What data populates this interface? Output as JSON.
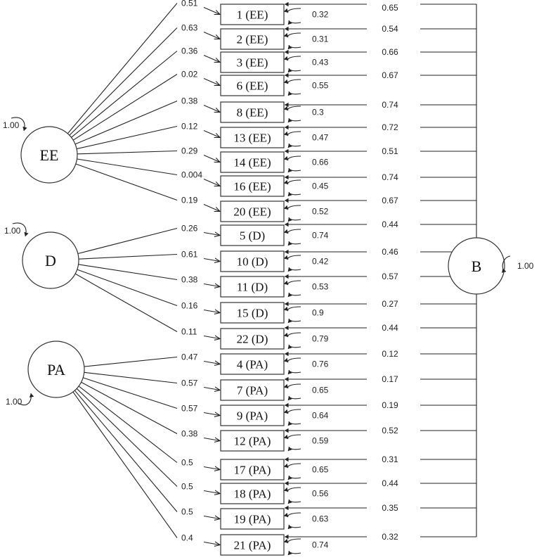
{
  "latents": [
    {
      "id": "EE",
      "label": "EE",
      "variance": "1.00"
    },
    {
      "id": "D",
      "label": "D",
      "variance": "1.00"
    },
    {
      "id": "PA",
      "label": "PA",
      "variance": "1.00"
    },
    {
      "id": "B",
      "label": "B",
      "variance": "1.00"
    }
  ],
  "items": [
    {
      "label": "1 (EE)",
      "factor": "EE",
      "loading": "0.51",
      "error": "0.32",
      "b_loading": "0.65"
    },
    {
      "label": "2 (EE)",
      "factor": "EE",
      "loading": "0.63",
      "error": "0.31",
      "b_loading": "0.54"
    },
    {
      "label": "3 (EE)",
      "factor": "EE",
      "loading": "0.36",
      "error": "0.43",
      "b_loading": "0.66"
    },
    {
      "label": "6 (EE)",
      "factor": "EE",
      "loading": "0.02",
      "error": "0.55",
      "b_loading": "0.67"
    },
    {
      "label": "8 (EE)",
      "factor": "EE",
      "loading": "0.38",
      "error": "0.3",
      "b_loading": "0.74"
    },
    {
      "label": "13 (EE)",
      "factor": "EE",
      "loading": "0.12",
      "error": "0.47",
      "b_loading": "0.72"
    },
    {
      "label": "14 (EE)",
      "factor": "EE",
      "loading": "0.29",
      "error": "0.66",
      "b_loading": "0.51"
    },
    {
      "label": "16 (EE)",
      "factor": "EE",
      "loading": "0.004",
      "error": "0.45",
      "b_loading": "0.74"
    },
    {
      "label": "20 (EE)",
      "factor": "EE",
      "loading": "0.19",
      "error": "0.52",
      "b_loading": "0.67"
    },
    {
      "label": "5 (D)",
      "factor": "D",
      "loading": "0.26",
      "error": "0.74",
      "b_loading": "0.44"
    },
    {
      "label": "10 (D)",
      "factor": "D",
      "loading": "0.61",
      "error": "0.42",
      "b_loading": "0.46"
    },
    {
      "label": "11 (D)",
      "factor": "D",
      "loading": "0.38",
      "error": "0.53",
      "b_loading": "0.57"
    },
    {
      "label": "15 (D)",
      "factor": "D",
      "loading": "0.16",
      "error": "0.9",
      "b_loading": "0.27"
    },
    {
      "label": "22 (D)",
      "factor": "D",
      "loading": "0.11",
      "error": "0.79",
      "b_loading": "0.44"
    },
    {
      "label": "4 (PA)",
      "factor": "PA",
      "loading": "0.47",
      "error": "0.76",
      "b_loading": "0.12"
    },
    {
      "label": "7 (PA)",
      "factor": "PA",
      "loading": "0.57",
      "error": "0.65",
      "b_loading": "0.17"
    },
    {
      "label": "9 (PA)",
      "factor": "PA",
      "loading": "0.57",
      "error": "0.64",
      "b_loading": "0.19"
    },
    {
      "label": "12 (PA)",
      "factor": "PA",
      "loading": "0.38",
      "error": "0.59",
      "b_loading": "0.52"
    },
    {
      "label": "17 (PA)",
      "factor": "PA",
      "loading": "0.5",
      "error": "0.65",
      "b_loading": "0.31"
    },
    {
      "label": "18 (PA)",
      "factor": "PA",
      "loading": "0.5",
      "error": "0.56",
      "b_loading": "0.44"
    },
    {
      "label": "19 (PA)",
      "factor": "PA",
      "loading": "0.5",
      "error": "0.63",
      "b_loading": "0.35"
    },
    {
      "label": "21 (PA)",
      "factor": "PA",
      "loading": "0.4",
      "error": "0.74",
      "b_loading": "0.32"
    }
  ]
}
